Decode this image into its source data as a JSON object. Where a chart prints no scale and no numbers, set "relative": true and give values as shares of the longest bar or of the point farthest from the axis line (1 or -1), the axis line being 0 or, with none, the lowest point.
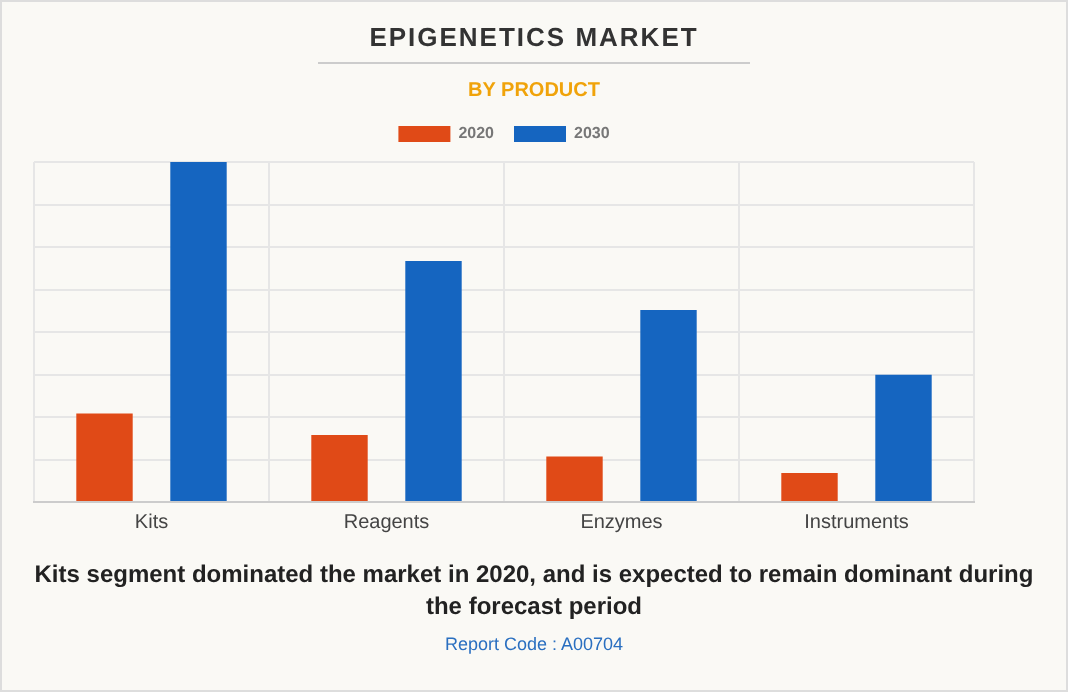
{
  "chart_data": {
    "type": "bar",
    "title": "EPIGENETICS MARKET",
    "subtitle": "BY PRODUCT",
    "categories": [
      "Kits",
      "Reagents",
      "Enzymes",
      "Instruments"
    ],
    "series": [
      {
        "name": "2020",
        "color": "#e04a17",
        "values": [
          0.26,
          0.197,
          0.134,
          0.085
        ]
      },
      {
        "name": "2030",
        "color": "#1565c0",
        "values": [
          1,
          0.709,
          0.565,
          0.374
        ]
      }
    ],
    "relative": true,
    "grid": true,
    "legend": "top",
    "annotations": [
      "Kits segment dominated the market in 2020, and is expected to remain dominant during the forecast period",
      "Report Code : A00704"
    ]
  }
}
